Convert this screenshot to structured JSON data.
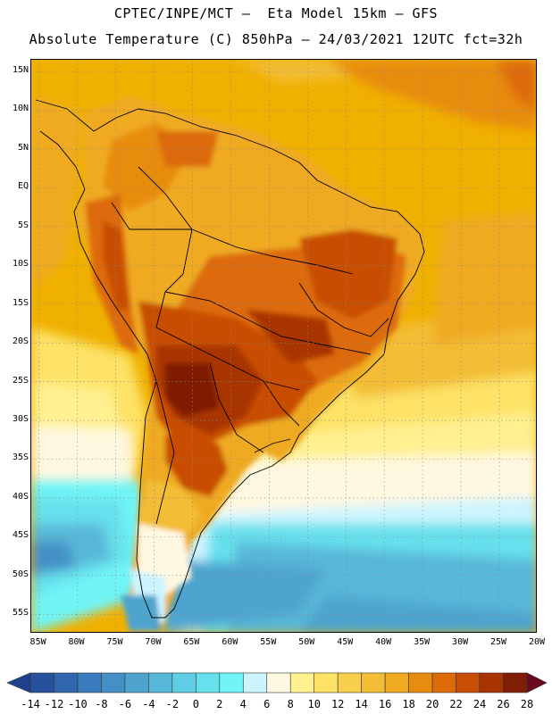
{
  "title": {
    "line1": "CPTEC/INPE/MCT –  Eta Model 15km – GFS",
    "line2": "Absolute Temperature (C) 850hPa – 24/03/2021 12UTC fct=32h"
  },
  "map": {
    "lat_labels": [
      "15N",
      "10N",
      "5N",
      "EQ",
      "5S",
      "10S",
      "15S",
      "20S",
      "25S",
      "30S",
      "35S",
      "40S",
      "45S",
      "50S",
      "55S"
    ],
    "lon_labels": [
      "85W",
      "80W",
      "75W",
      "70W",
      "65W",
      "60W",
      "55W",
      "50W",
      "45W",
      "40W",
      "35W",
      "30W",
      "25W",
      "20W"
    ],
    "lat_values": [
      15,
      10,
      5,
      0,
      -5,
      -10,
      -15,
      -20,
      -25,
      -30,
      -35,
      -40,
      -45,
      -50,
      -55
    ],
    "lon_values": [
      -85,
      -80,
      -75,
      -70,
      -65,
      -60,
      -55,
      -50,
      -45,
      -40,
      -35,
      -30,
      -25,
      -20
    ],
    "lon_range": [
      -86,
      -20
    ],
    "lat_range": [
      16.5,
      -57.5
    ],
    "grid": true,
    "ocean_color": "#F0B000"
  },
  "colorbar": {
    "labels": [
      "-14",
      "-12",
      "-10",
      "-8",
      "-6",
      "-4",
      "-2",
      "0",
      "2",
      "4",
      "6",
      "8",
      "10",
      "12",
      "14",
      "16",
      "18",
      "20",
      "22",
      "24",
      "26",
      "28"
    ],
    "colors": [
      "#1f3f8f",
      "#27519c",
      "#2f66ad",
      "#3a7bbd",
      "#4490c6",
      "#4ea4cf",
      "#58b8d9",
      "#5fcde3",
      "#66e0ec",
      "#70f4f6",
      "#ccf4ff",
      "#fff8e0",
      "#fff090",
      "#fde266",
      "#f8cf4c",
      "#f3bd36",
      "#efaa20",
      "#e88c10",
      "#dd6b08",
      "#c84e06",
      "#a83404",
      "#7f1e03",
      "#6a0a20"
    ]
  }
}
